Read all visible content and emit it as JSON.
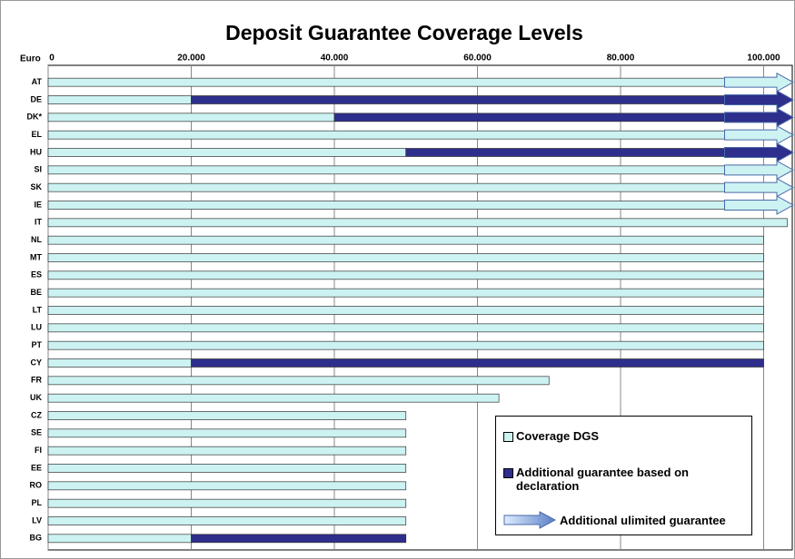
{
  "chart_data": {
    "type": "stacked-barh",
    "title": "Deposit Guarantee Coverage Levels",
    "xlabel": "Euro",
    "categories": [
      "AT",
      "DE",
      "DK*",
      "EL",
      "HU",
      "SI",
      "SK",
      "IE",
      "IT",
      "NL",
      "MT",
      "ES",
      "BE",
      "LT",
      "LU",
      "PT",
      "CY",
      "FR",
      "UK",
      "CZ",
      "SE",
      "FI",
      "EE",
      "RO",
      "PL",
      "LV",
      "BG"
    ],
    "series": [
      {
        "name": "Coverage DGS",
        "color": "#ccf2f2",
        "values": [
          100000,
          20000,
          40000,
          100000,
          50000,
          100000,
          100000,
          100000,
          103291,
          100000,
          100000,
          100000,
          100000,
          100000,
          100000,
          100000,
          20000,
          70000,
          63000,
          50000,
          50000,
          50000,
          50000,
          50000,
          50000,
          50000,
          20000
        ]
      },
      {
        "name": "Additional guarantee based on declaration",
        "color": "#2e2e8c",
        "values": [
          null,
          80000,
          60000,
          null,
          50000,
          null,
          null,
          null,
          null,
          null,
          null,
          null,
          null,
          null,
          null,
          null,
          80000,
          null,
          null,
          null,
          null,
          null,
          null,
          null,
          null,
          null,
          30000
        ]
      },
      {
        "name": "Additional ulimited guarantee",
        "type": "arrow",
        "color": "#ccf2f2",
        "values": [
          100000,
          100000,
          100000,
          100000,
          100000,
          100000,
          100000,
          100000,
          null,
          null,
          null,
          null,
          null,
          null,
          null,
          null,
          null,
          null,
          null,
          null,
          null,
          null,
          null,
          null,
          null,
          null,
          null
        ]
      }
    ],
    "xlim": [
      0,
      104000
    ],
    "xticks": [
      0,
      {
        "value": 20000,
        "label": "20.000"
      },
      {
        "value": 40000,
        "label": "40.000"
      },
      {
        "value": 60000,
        "label": "60.000"
      },
      {
        "value": 80000,
        "label": "80.000"
      },
      {
        "value": 100000,
        "label": "100.000"
      }
    ],
    "grid": true,
    "legend": "bottom-right"
  }
}
